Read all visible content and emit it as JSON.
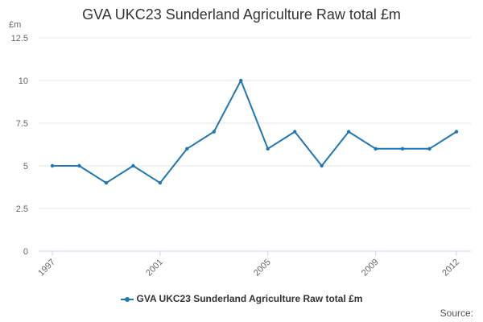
{
  "chart_data": {
    "type": "line",
    "title": "GVA UKC23 Sunderland Agriculture Raw total £m",
    "ylabel": "£m",
    "xlabel": "",
    "x": [
      1997,
      1998,
      1999,
      2000,
      2001,
      2002,
      2003,
      2004,
      2005,
      2006,
      2007,
      2008,
      2009,
      2010,
      2011,
      2012
    ],
    "series": [
      {
        "name": "GVA UKC23 Sunderland Agriculture Raw total £m",
        "values": [
          5,
          5,
          4,
          5,
          4,
          6,
          7,
          10,
          6,
          7,
          5,
          7,
          6,
          6,
          6,
          7
        ]
      }
    ],
    "xticks": [
      "1997",
      "2001",
      "2005",
      "2009",
      "2012"
    ],
    "yticks": [
      "0",
      "2.5",
      "5",
      "7.5",
      "10",
      "12.5"
    ],
    "ylim": [
      0,
      12.5
    ],
    "grid": true,
    "legend_position": "bottom-center",
    "source_label": "Source:"
  },
  "colors": {
    "series": "#1F77B4",
    "grid": "#e6e6e6",
    "axis": "#ccd6eb",
    "text": "#333333",
    "tick_text": "#666666"
  }
}
